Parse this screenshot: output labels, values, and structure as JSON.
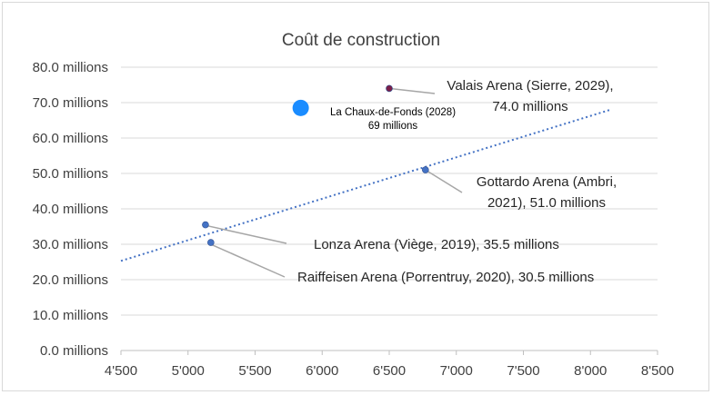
{
  "chart_data": {
    "type": "scatter",
    "title": "Coût de construction",
    "xlabel": "",
    "ylabel": "",
    "xlim": [
      4500,
      8500
    ],
    "ylim": [
      0,
      80
    ],
    "x_ticks": [
      4500,
      5000,
      5500,
      6000,
      6500,
      7000,
      7500,
      8000,
      8500
    ],
    "x_tick_labels": [
      "4'500",
      "5'000",
      "5'500",
      "6'000",
      "6'500",
      "7'000",
      "7'500",
      "8'000",
      "8'500"
    ],
    "y_ticks": [
      0,
      10,
      20,
      30,
      40,
      50,
      60,
      70,
      80
    ],
    "y_tick_labels": [
      "0.0 millions",
      "10.0 millions",
      "20.0 millions",
      "30.0 millions",
      "40.0 millions",
      "50.0 millions",
      "60.0 millions",
      "70.0 millions",
      "80.0 millions"
    ],
    "grid": "horizontal",
    "points": [
      {
        "name": "lonza",
        "x": 5130,
        "y": 35.5,
        "label": "Lonza Arena  (Viège, 2019), 35.5 millions",
        "color": "#4472c4"
      },
      {
        "name": "raiffeisen",
        "x": 5170,
        "y": 30.5,
        "label": "Raiffeisen Arena (Porrentruy, 2020), 30.5 millions",
        "color": "#4472c4"
      },
      {
        "name": "gottardo",
        "x": 6770,
        "y": 51.0,
        "label": [
          "Gottardo Arena (Ambri,",
          "2021), 51.0 millions"
        ],
        "color": "#4472c4"
      },
      {
        "name": "valais",
        "x": 6500,
        "y": 74.0,
        "label": [
          "Valais Arena (Sierre, 2029),",
          "74.0 millions"
        ],
        "color": "#7a1f4a"
      },
      {
        "name": "chaux-de-fonds",
        "x": 5840,
        "y": 68.5,
        "label": [
          "La Chaux-de-Fonds (2028)",
          "69 millions"
        ],
        "color": "#1a8cff",
        "highlight": true
      }
    ],
    "trendline": {
      "style": "dotted",
      "color": "#4472c4",
      "x": [
        4500,
        8150
      ],
      "y": [
        25.3,
        68.0
      ]
    }
  }
}
